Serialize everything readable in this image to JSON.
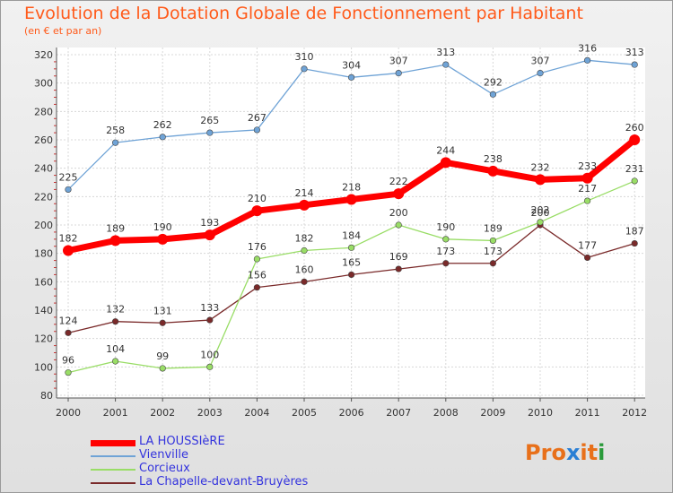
{
  "title": "Evolution de la Dotation Globale de Fonctionnement par Habitant",
  "subtitle": "(en € et par an)",
  "logo": {
    "text": "Proxiti",
    "letters": [
      "P",
      "r",
      "o",
      "x",
      "i",
      "t",
      "i"
    ],
    "colors": [
      "#e8701a",
      "#e8701a",
      "#e8701a",
      "#2a7fd4",
      "#e8701a",
      "#e8701a",
      "#2a9a3a"
    ]
  },
  "chart_data": {
    "type": "line",
    "title": "Evolution de la Dotation Globale de Fonctionnement par Habitant",
    "subtitle": "(en € et par an)",
    "x": [
      "2000",
      "2001",
      "2002",
      "2003",
      "2004",
      "2005",
      "2006",
      "2007",
      "2008",
      "2009",
      "2010",
      "2011",
      "2012"
    ],
    "yticks": [
      "80",
      "100",
      "120",
      "140",
      "160",
      "180",
      "200",
      "220",
      "240",
      "260",
      "280",
      "300",
      "320"
    ],
    "ylim": [
      80,
      320
    ],
    "grid": true,
    "legend_position": "bottom-left",
    "series": [
      {
        "name": "LA HOUSSIèRE",
        "color": "#ff0000",
        "values": [
          182,
          189,
          190,
          193,
          210,
          214,
          218,
          222,
          244,
          238,
          232,
          233,
          260
        ],
        "labels": [
          "182",
          "189",
          "190",
          "193",
          "210",
          "214",
          "218",
          "222",
          "244",
          "238",
          "232",
          "233",
          "260"
        ]
      },
      {
        "name": "Vienville",
        "color": "#6fa3d6",
        "values": [
          225,
          258,
          262,
          265,
          267,
          310,
          304,
          307,
          313,
          292,
          307,
          316,
          313
        ],
        "labels": [
          "225",
          "258",
          "262",
          "265",
          "267",
          "310",
          "304",
          "307",
          "313",
          "292",
          "307",
          "316",
          "313"
        ]
      },
      {
        "name": "Corcieux",
        "color": "#99dd66",
        "values": [
          96,
          104,
          99,
          100,
          176,
          182,
          184,
          200,
          190,
          189,
          202,
          217,
          231
        ],
        "labels": [
          "96",
          "104",
          "99",
          "100",
          "176",
          "182",
          "184",
          "200",
          "190",
          "189",
          "202",
          "217",
          "231"
        ]
      },
      {
        "name": "La Chapelle-devant-Bruyères",
        "color": "#7a2a2a",
        "values": [
          124,
          132,
          131,
          133,
          156,
          160,
          165,
          169,
          173,
          173,
          200,
          177,
          187
        ],
        "labels": [
          "124",
          "132",
          "131",
          "133",
          "156",
          "160",
          "165",
          "169",
          "173",
          "173",
          "200",
          "177",
          "187"
        ]
      }
    ]
  }
}
